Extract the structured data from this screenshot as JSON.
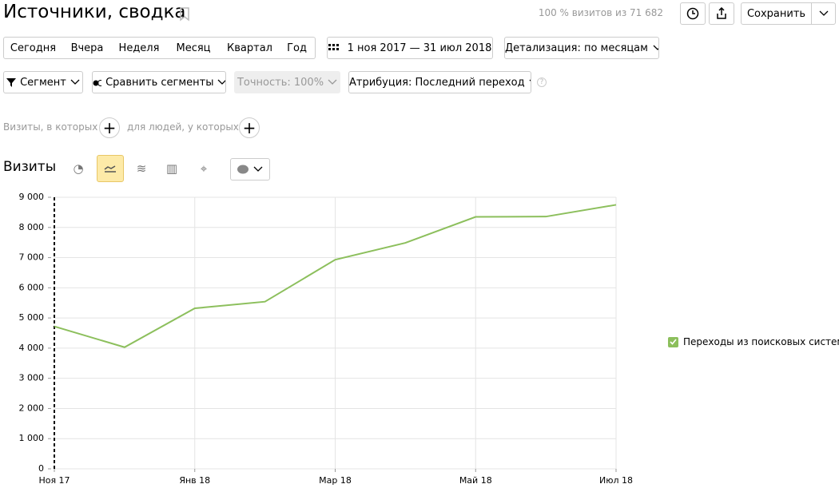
{
  "header": {
    "title": "Источники, сводка",
    "visits_info": "100 % визитов из 71 682",
    "save_button": "Сохранить"
  },
  "periods": [
    "Сегодня",
    "Вчера",
    "Неделя",
    "Месяц",
    "Квартал",
    "Год"
  ],
  "date_range": "1 ноя 2017 — 31 июл 2018",
  "detail": "Детализация: по месяцам",
  "filters": {
    "segment": "Сегмент",
    "compare": "Сравнить сегменты",
    "accuracy": "Точность: 100%",
    "attribution": "Атрибуция: Последний переход"
  },
  "conditions": {
    "visits": "Визиты, в которых",
    "people": "для людей, у которых"
  },
  "metric_label": "Визиты",
  "chart_data": {
    "type": "line",
    "x": [
      "Ноя 17",
      null,
      "Янв 18",
      null,
      "Мар 18",
      null,
      "Май 18",
      null,
      "Июл 18"
    ],
    "series": [
      {
        "name": "Переходы из поисковых систем",
        "color": "#8cbf5c",
        "values": [
          4720,
          4030,
          5320,
          5540,
          6930,
          7490,
          8350,
          8360,
          8750
        ]
      }
    ],
    "ylim": [
      0,
      9000
    ],
    "yticks": [
      0,
      {
        "value": 1000,
        "label": "1 000"
      },
      {
        "value": 2000,
        "label": "2 000"
      },
      {
        "value": 3000,
        "label": "3 000"
      },
      {
        "value": 4000,
        "label": "4 000"
      },
      {
        "value": 5000,
        "label": "5 000"
      },
      {
        "value": 6000,
        "label": "6 000"
      },
      {
        "value": 7000,
        "label": "7 000"
      },
      {
        "value": 8000,
        "label": "8 000"
      },
      {
        "value": 9000,
        "label": "9 000"
      }
    ],
    "grid": true,
    "legend": "right"
  }
}
